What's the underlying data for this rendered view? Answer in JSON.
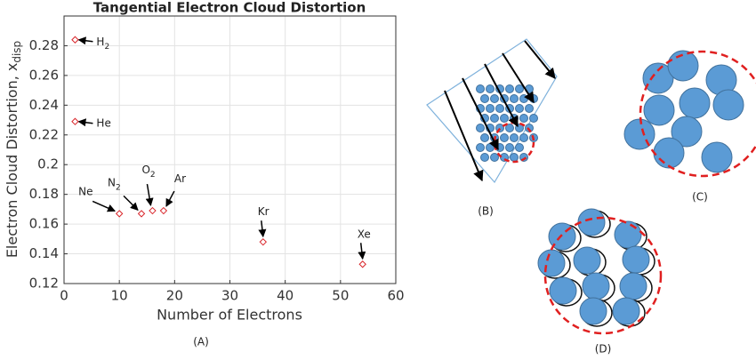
{
  "chart_data": {
    "type": "scatter",
    "title": "Tangential Electron Cloud Distortion",
    "xlabel": "Number of Electrons",
    "ylabel": {
      "text": "Electron Cloud Distortion, x",
      "sub": "disp"
    },
    "x": [
      2,
      2,
      10,
      14,
      16,
      18,
      36,
      54
    ],
    "values": [
      0.284,
      0.229,
      0.167,
      0.167,
      0.169,
      0.169,
      0.148,
      0.133
    ],
    "point_labels": [
      {
        "text": "H",
        "sub": "2"
      },
      {
        "text": "He"
      },
      {
        "text": "Ne"
      },
      {
        "text": "N",
        "sub": "2"
      },
      {
        "text": "O",
        "sub": "2"
      },
      {
        "text": "Ar"
      },
      {
        "text": "Kr"
      },
      {
        "text": "Xe"
      }
    ],
    "color": "#d9262b",
    "xlim": [
      0,
      60
    ],
    "xticks": [
      0,
      10,
      20,
      30,
      40,
      50,
      60
    ],
    "ylim": [
      0.12,
      0.3
    ],
    "yticks": [
      0.12,
      0.14,
      0.16,
      0.18,
      0.2,
      0.22,
      0.24,
      0.26,
      0.28
    ],
    "grid": true
  },
  "panels": {
    "a": "(A)",
    "b": "(B)",
    "c": "(C)",
    "d": "(D)"
  }
}
